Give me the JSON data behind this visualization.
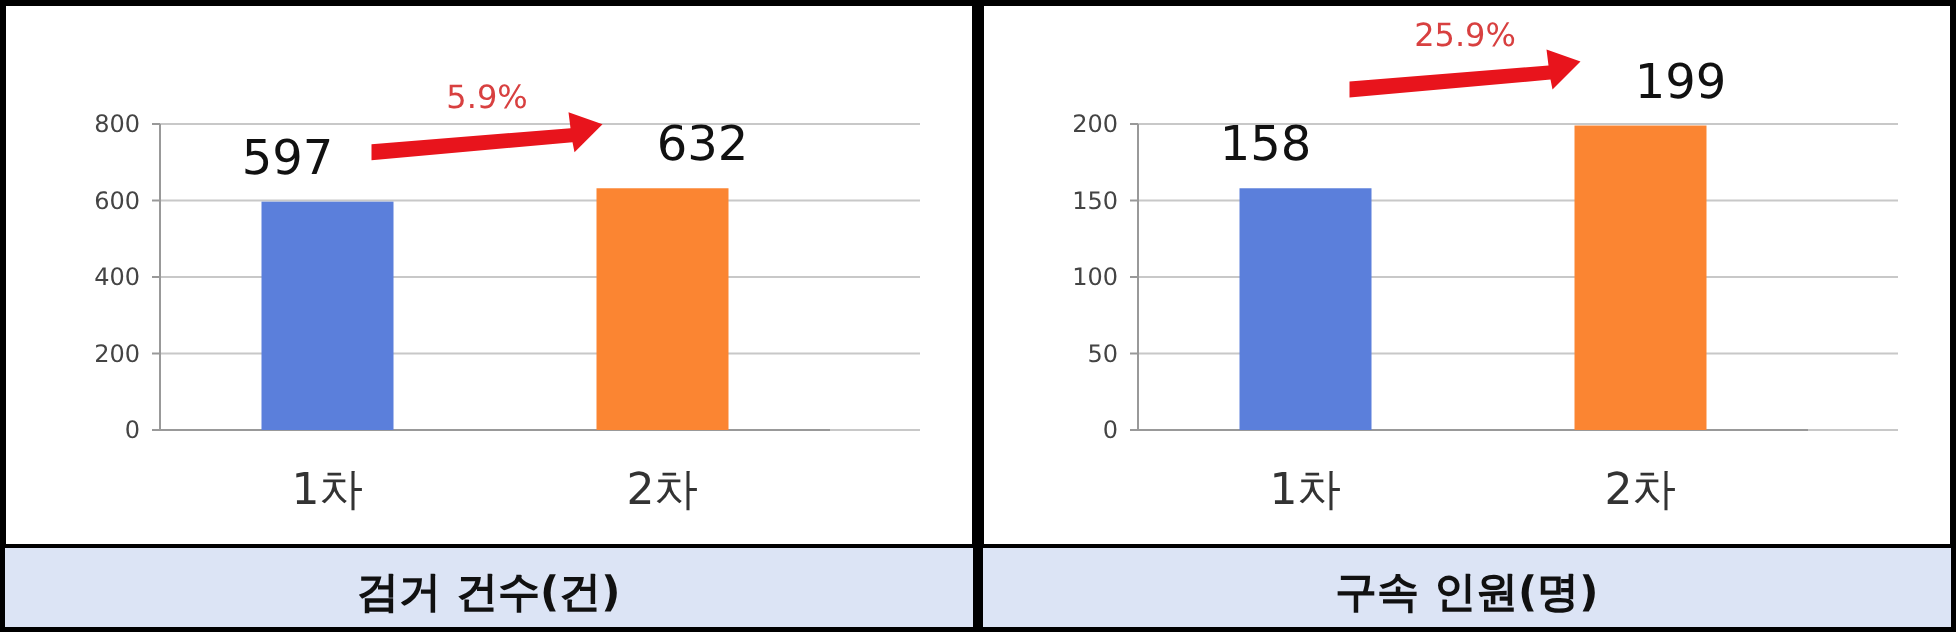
{
  "chart_data": [
    {
      "type": "bar",
      "xlabel": "검거 건수(건)",
      "categories": [
        "1차",
        "2차"
      ],
      "values": [
        597,
        632
      ],
      "colors": [
        "#5b7fdb",
        "#fb8532"
      ],
      "ylim": [
        0,
        800
      ],
      "yticks": [
        0,
        200,
        400,
        600,
        800
      ],
      "grid": "y",
      "data_labels": true,
      "annotations": [
        "5.9%"
      ]
    },
    {
      "type": "bar",
      "xlabel": "구속 인원(명)",
      "categories": [
        "1차",
        "2차"
      ],
      "values": [
        158,
        199
      ],
      "colors": [
        "#5b7fdb",
        "#fb8532"
      ],
      "ylim": [
        0,
        200
      ],
      "yticks": [
        0,
        50,
        100,
        150,
        200
      ],
      "grid": "y",
      "data_labels": true,
      "annotations": [
        "25.9%"
      ]
    }
  ]
}
